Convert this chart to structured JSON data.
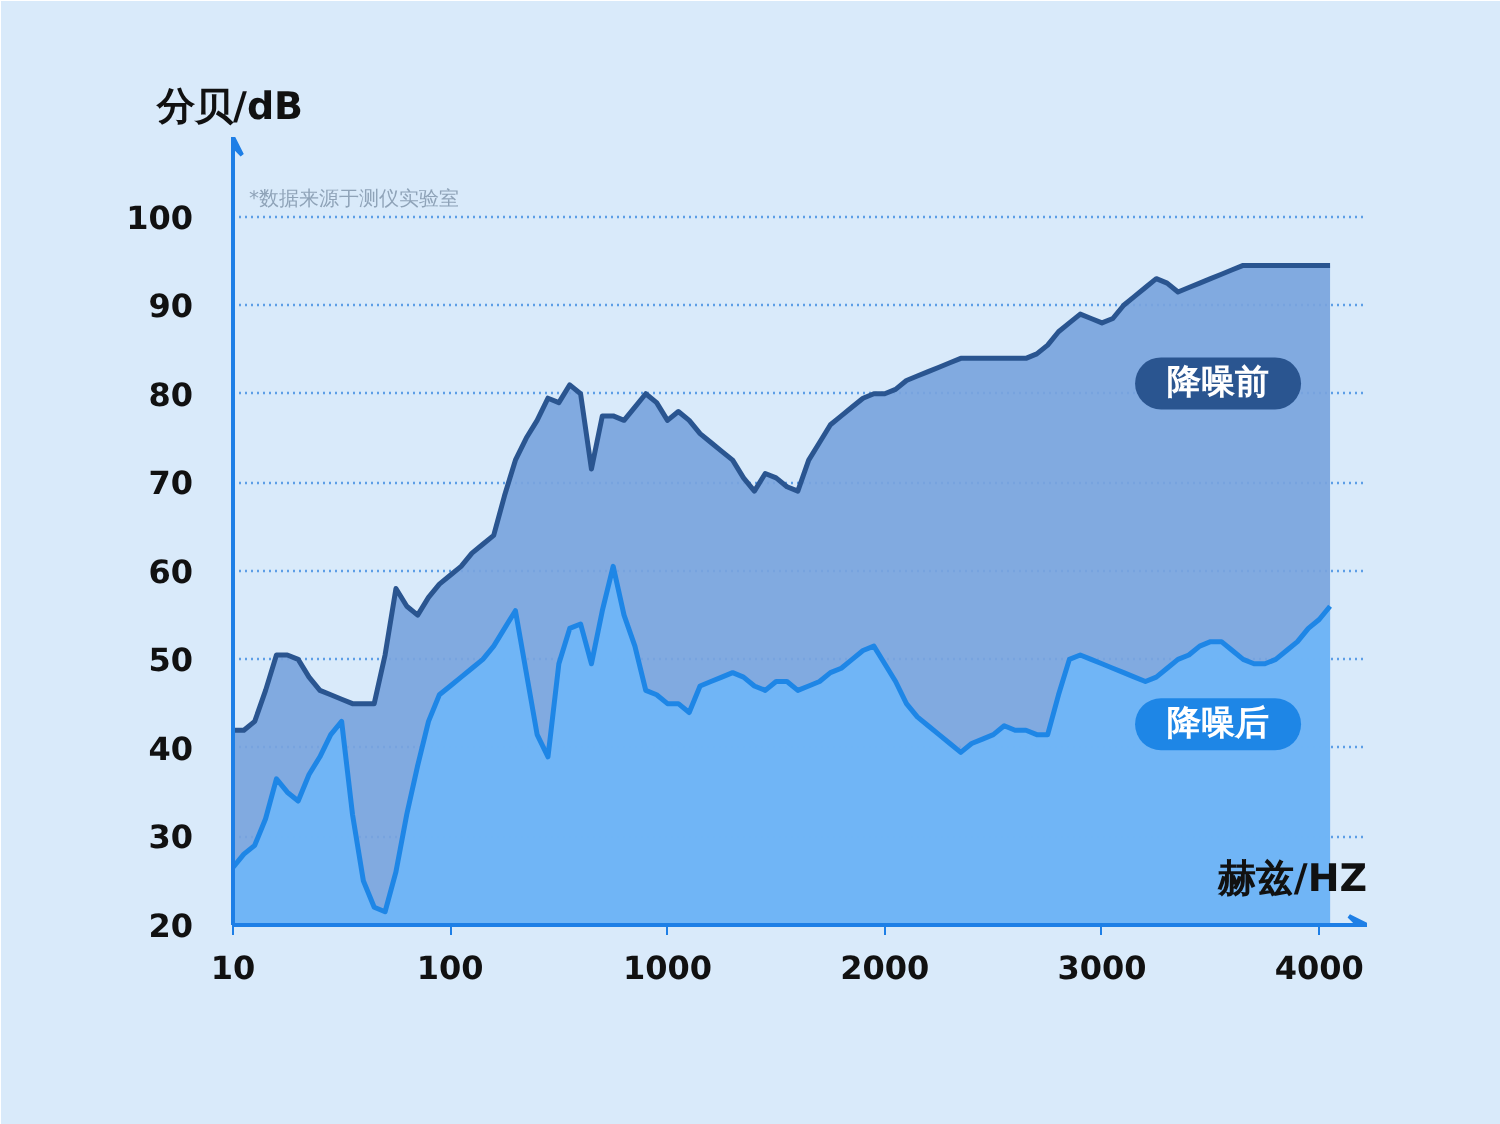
{
  "chart_data": {
    "type": "area",
    "xlabel": "赫兹/HZ",
    "ylabel": "分贝/dB",
    "annotations": [
      "*数据来源于测仪实验室"
    ],
    "categories": [
      "10",
      null,
      null,
      null,
      null,
      null,
      null,
      null,
      null,
      null,
      null,
      null,
      null,
      null,
      null,
      null,
      null,
      null,
      null,
      null,
      "100",
      null,
      null,
      null,
      null,
      null,
      null,
      null,
      null,
      null,
      null,
      null,
      null,
      null,
      null,
      null,
      null,
      null,
      null,
      null,
      "1000",
      null,
      null,
      null,
      null,
      null,
      null,
      null,
      null,
      null,
      null,
      null,
      null,
      null,
      null,
      null,
      null,
      null,
      null,
      null,
      "2000",
      null,
      null,
      null,
      null,
      null,
      null,
      null,
      null,
      null,
      null,
      null,
      null,
      null,
      null,
      null,
      null,
      null,
      null,
      null,
      "3000",
      null,
      null,
      null,
      null,
      null,
      null,
      null,
      null,
      null,
      null,
      null,
      null,
      null,
      null,
      null,
      null,
      null,
      null,
      null,
      "4000",
      null
    ],
    "ylim": [
      20,
      109
    ],
    "yticks": [
      20,
      30,
      40,
      50,
      60,
      70,
      80,
      90,
      100
    ],
    "grid": "y",
    "series": [
      {
        "name": "降噪前",
        "color": "#2a5590",
        "values": [
          42,
          42,
          43,
          46.5,
          50.5,
          50.5,
          50,
          48,
          46.5,
          46,
          45.5,
          45,
          45,
          45,
          50.5,
          58,
          56,
          55,
          57,
          58.5,
          59.5,
          60.5,
          62,
          63,
          64,
          68.5,
          72.5,
          75,
          77,
          79.5,
          79,
          81,
          80,
          71.5,
          77.5,
          77.5,
          77,
          78.5,
          80,
          79,
          77,
          78,
          77,
          75.5,
          74.5,
          73.5,
          72.5,
          70.5,
          69,
          71,
          70.5,
          69.5,
          69,
          72.5,
          74.5,
          76.5,
          77.5,
          78.5,
          79.5,
          80,
          80,
          80.5,
          81.5,
          82,
          82.5,
          83,
          83.5,
          84,
          84,
          84,
          84,
          84,
          84,
          84,
          84.5,
          85.5,
          87,
          88,
          89,
          88.5,
          88,
          88.5,
          90,
          91,
          92,
          93,
          92.5,
          91.5,
          92,
          92.5,
          93,
          93.5,
          94,
          94.5,
          94.5,
          94.5,
          94.5,
          94.5,
          94.5,
          94.5,
          94.5,
          94.5
        ]
      },
      {
        "name": "降噪后",
        "color": "#1e86e6",
        "values": [
          26.5,
          28,
          29,
          32,
          36.5,
          35,
          34,
          37,
          39,
          41.5,
          43,
          32.5,
          25,
          22,
          21.5,
          26,
          32.5,
          38,
          43,
          46,
          47,
          48,
          49,
          50,
          51.5,
          53.5,
          55.5,
          48.5,
          41.5,
          39,
          49.5,
          53.5,
          54,
          49.5,
          55.5,
          60.5,
          55,
          51.5,
          46.5,
          46,
          45,
          45,
          44,
          47,
          47.5,
          48,
          48.5,
          48,
          47,
          46.5,
          47.5,
          47.5,
          46.5,
          47,
          47.5,
          48.5,
          49,
          50,
          51,
          51.5,
          49.5,
          47.5,
          45,
          43.5,
          42.5,
          41.5,
          40.5,
          39.5,
          40.5,
          41,
          41.5,
          42.5,
          42,
          42,
          41.5,
          41.5,
          46,
          50,
          50.5,
          50,
          49.5,
          49,
          48.5,
          48,
          47.5,
          48,
          49,
          50,
          50.5,
          51.5,
          52,
          52,
          51,
          50,
          49.5,
          49.5,
          50,
          51,
          52,
          53.5,
          54.5,
          56
        ]
      }
    ]
  }
}
